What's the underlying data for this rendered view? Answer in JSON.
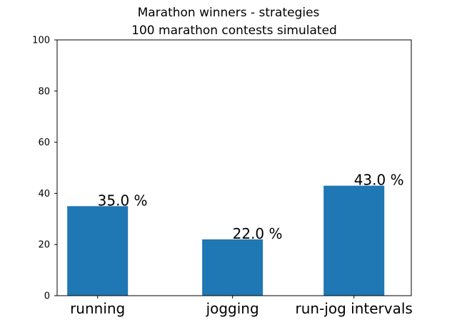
{
  "chart_data": {
    "type": "bar",
    "suptitle": "Marathon winners - strategies",
    "title": "100 marathon contests simulated",
    "xlabel": "",
    "ylabel": "",
    "categories": [
      "running",
      "jogging",
      "run-jog intervals"
    ],
    "x": [
      0.5,
      2.5,
      4.3
    ],
    "values": [
      35,
      22,
      43
    ],
    "data_labels": [
      "35.0 %",
      "22.0 %",
      "43.0 %"
    ],
    "xlim": [
      -0.1,
      5.15
    ],
    "ylim": [
      0,
      100
    ],
    "yticks": [
      0,
      20,
      40,
      60,
      80,
      100
    ],
    "bar_color": "#1f77b4",
    "grid": false,
    "legend": "none"
  }
}
